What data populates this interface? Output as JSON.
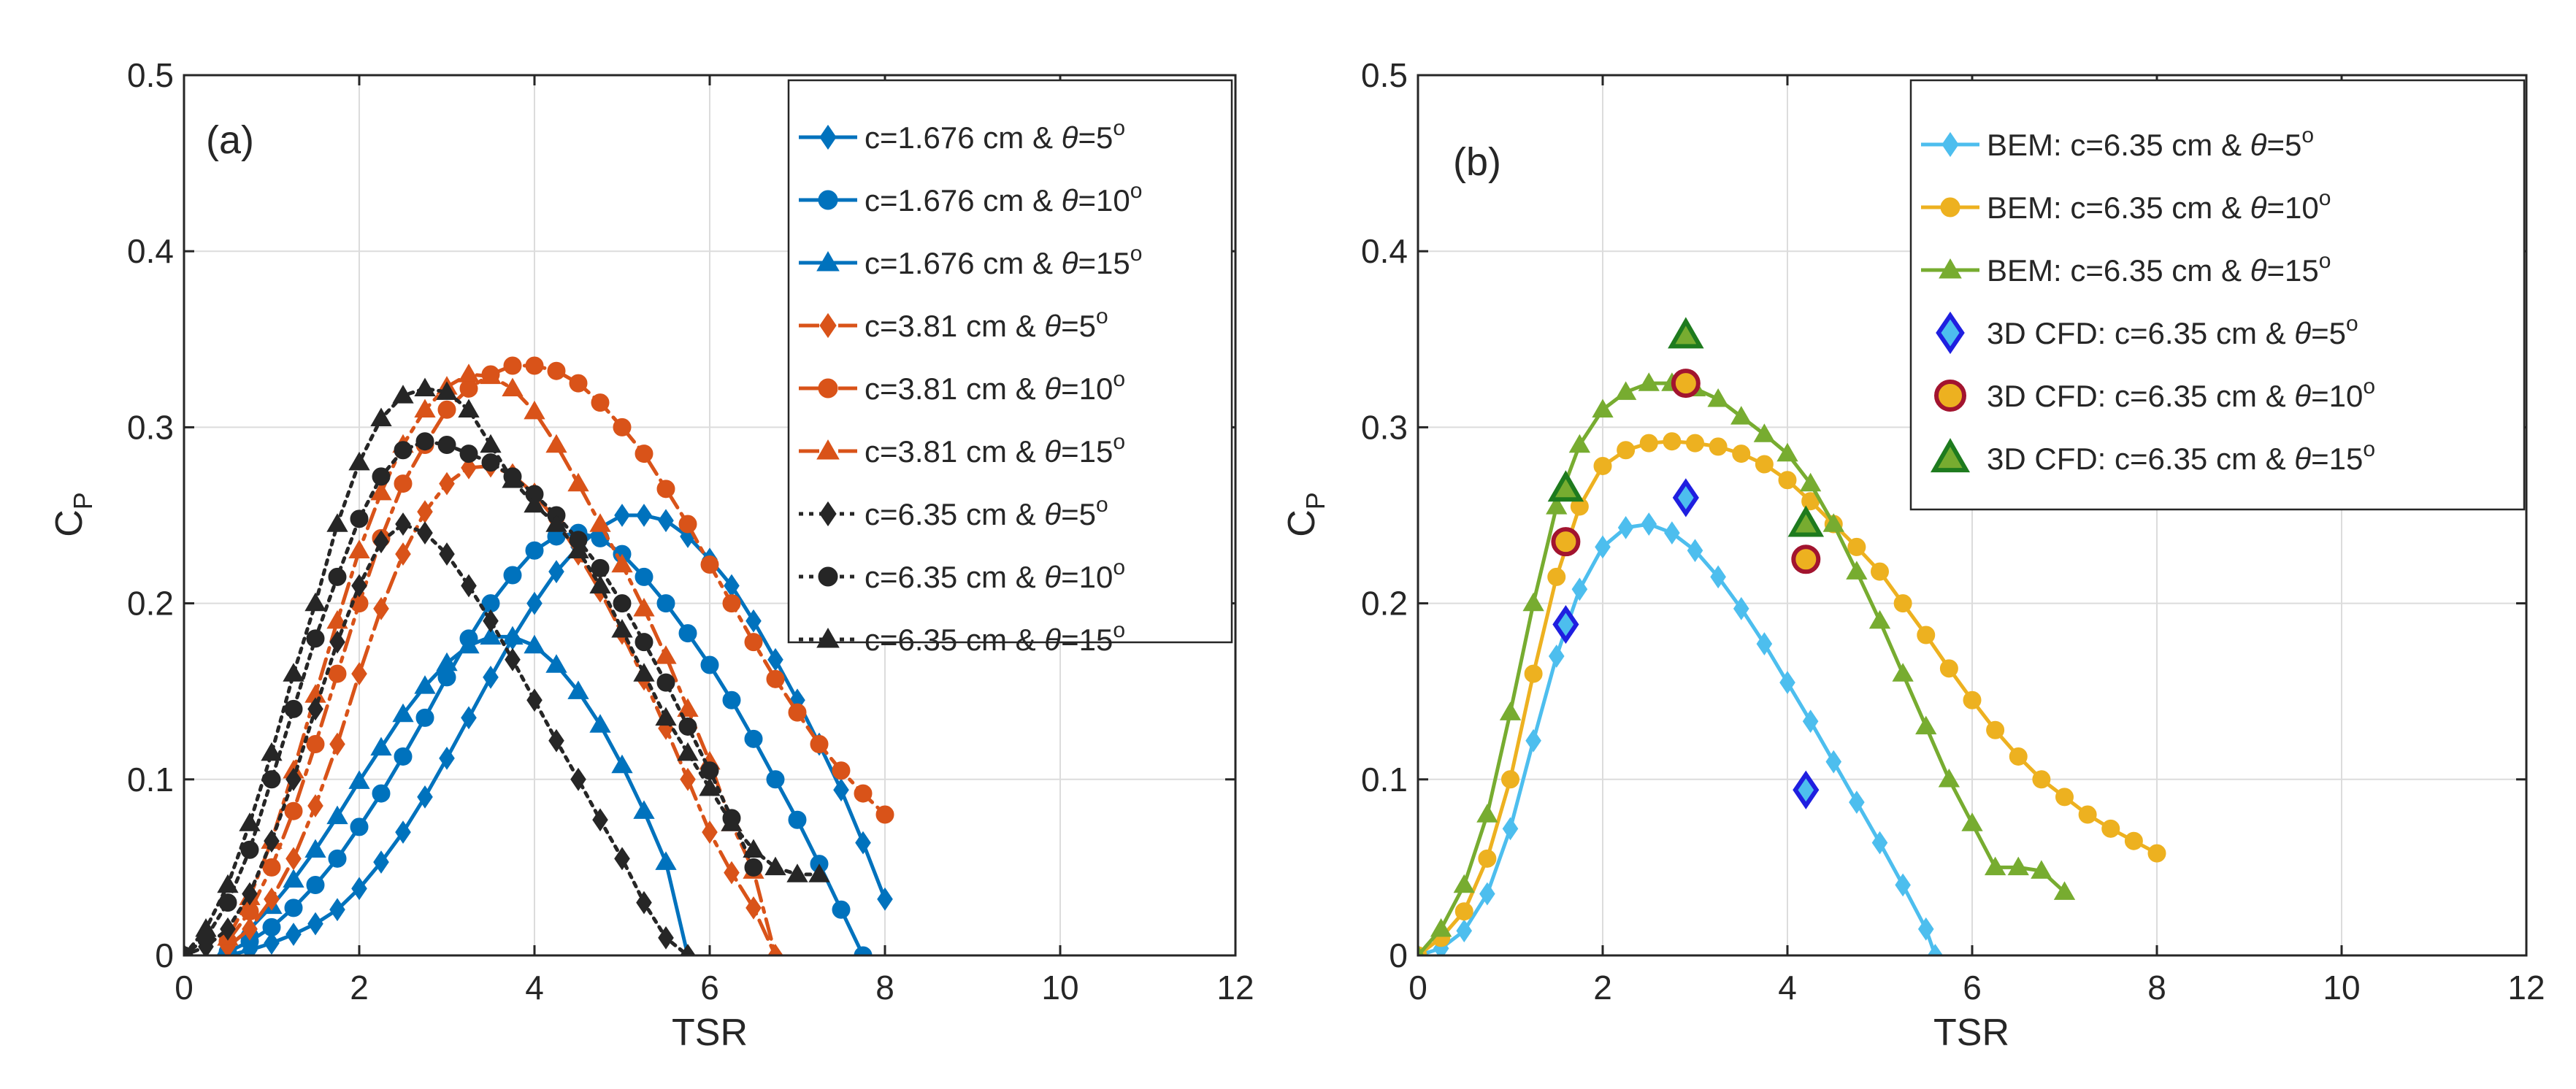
{
  "chart_data": [
    {
      "type": "line",
      "panel_label": "(a)",
      "xlabel": "TSR",
      "ylabel": "C",
      "ylabel_sub": "P",
      "xlim": [
        0,
        12
      ],
      "ylim": [
        0,
        0.5
      ],
      "xticks": [
        "0",
        "2",
        "4",
        "6",
        "8",
        "10",
        "12"
      ],
      "yticks": [
        "0",
        "0.1",
        "0.2",
        "0.3",
        "0.4",
        "0.5"
      ],
      "grid": true,
      "legend_position": "top-right",
      "series": [
        {
          "name": "c=1.676 cm & θ=5",
          "sup": "o",
          "color": "#0072BD",
          "dash": "solid",
          "marker": "diamond",
          "x": [
            0.5,
            0.75,
            1.0,
            1.25,
            1.5,
            1.75,
            2.0,
            2.25,
            2.5,
            2.75,
            3.0,
            3.25,
            3.5,
            3.75,
            4.0,
            4.25,
            4.5,
            4.75,
            5.0,
            5.25,
            5.5,
            5.75,
            6.0,
            6.25,
            6.5,
            6.75,
            7.0,
            7.25,
            7.5,
            7.75,
            8.0
          ],
          "y": [
            0.0,
            0.003,
            0.007,
            0.012,
            0.018,
            0.026,
            0.038,
            0.053,
            0.07,
            0.09,
            0.112,
            0.135,
            0.158,
            0.18,
            0.2,
            0.218,
            0.232,
            0.243,
            0.25,
            0.25,
            0.247,
            0.238,
            0.225,
            0.21,
            0.19,
            0.168,
            0.145,
            0.12,
            0.094,
            0.064,
            0.032
          ]
        },
        {
          "name": "c=1.676 cm & θ=10",
          "sup": "o",
          "color": "#0072BD",
          "dash": "solid",
          "marker": "circle",
          "x": [
            0.5,
            0.75,
            1.0,
            1.25,
            1.5,
            1.75,
            2.0,
            2.25,
            2.5,
            2.75,
            3.0,
            3.25,
            3.5,
            3.75,
            4.0,
            4.25,
            4.5,
            4.75,
            5.0,
            5.25,
            5.5,
            5.75,
            6.0,
            6.25,
            6.5,
            6.75,
            7.0,
            7.25,
            7.5,
            7.75
          ],
          "y": [
            0.002,
            0.008,
            0.016,
            0.027,
            0.04,
            0.055,
            0.073,
            0.092,
            0.113,
            0.135,
            0.158,
            0.18,
            0.2,
            0.216,
            0.23,
            0.238,
            0.24,
            0.237,
            0.228,
            0.215,
            0.2,
            0.183,
            0.165,
            0.145,
            0.123,
            0.1,
            0.077,
            0.052,
            0.026,
            0.0
          ]
        },
        {
          "name": "c=1.676 cm & θ=15",
          "sup": "o",
          "color": "#0072BD",
          "dash": "solid",
          "marker": "triangle",
          "x": [
            0.5,
            0.75,
            1.0,
            1.25,
            1.5,
            1.75,
            2.0,
            2.25,
            2.5,
            2.75,
            3.0,
            3.25,
            3.5,
            3.75,
            4.0,
            4.25,
            4.5,
            4.75,
            5.0,
            5.25,
            5.5,
            5.75
          ],
          "y": [
            0.005,
            0.015,
            0.028,
            0.043,
            0.06,
            0.079,
            0.099,
            0.118,
            0.137,
            0.153,
            0.166,
            0.176,
            0.181,
            0.181,
            0.176,
            0.165,
            0.15,
            0.131,
            0.108,
            0.082,
            0.053,
            0.0
          ]
        },
        {
          "name": "c=3.81 cm & θ=5",
          "sup": "o",
          "color": "#D95319",
          "dash": "dashdot",
          "marker": "diamond",
          "x": [
            0.5,
            0.75,
            1.0,
            1.25,
            1.5,
            1.75,
            2.0,
            2.25,
            2.5,
            2.75,
            3.0,
            3.25,
            3.5,
            3.75,
            4.0,
            4.25,
            4.5,
            4.75,
            5.0,
            5.25,
            5.5,
            5.75,
            6.0,
            6.25,
            6.5,
            6.75
          ],
          "y": [
            0.005,
            0.015,
            0.032,
            0.055,
            0.085,
            0.12,
            0.16,
            0.197,
            0.228,
            0.252,
            0.268,
            0.277,
            0.278,
            0.273,
            0.262,
            0.247,
            0.228,
            0.207,
            0.183,
            0.157,
            0.129,
            0.1,
            0.07,
            0.047,
            0.027,
            0.0
          ]
        },
        {
          "name": "c=3.81 cm & θ=10",
          "sup": "o",
          "color": "#D95319",
          "dash": "dashdot",
          "marker": "circle",
          "x": [
            0.5,
            0.75,
            1.0,
            1.25,
            1.5,
            1.75,
            2.0,
            2.25,
            2.5,
            2.75,
            3.0,
            3.25,
            3.5,
            3.75,
            4.0,
            4.25,
            4.5,
            4.75,
            5.0,
            5.25,
            5.5,
            5.75,
            6.0,
            6.25,
            6.5,
            6.75,
            7.0,
            7.25,
            7.5,
            7.75,
            8.0
          ],
          "y": [
            0.008,
            0.025,
            0.05,
            0.082,
            0.12,
            0.16,
            0.2,
            0.237,
            0.268,
            0.29,
            0.31,
            0.322,
            0.33,
            0.335,
            0.335,
            0.332,
            0.325,
            0.314,
            0.3,
            0.285,
            0.265,
            0.245,
            0.222,
            0.2,
            0.178,
            0.157,
            0.138,
            0.12,
            0.105,
            0.092,
            0.08
          ]
        },
        {
          "name": "c=3.81 cm & θ=15",
          "sup": "o",
          "color": "#D95319",
          "dash": "dashdot",
          "marker": "triangle",
          "x": [
            0.5,
            0.75,
            1.0,
            1.25,
            1.5,
            1.75,
            2.0,
            2.25,
            2.5,
            2.75,
            3.0,
            3.25,
            3.5,
            3.75,
            4.0,
            4.25,
            4.5,
            4.75,
            5.0,
            5.25,
            5.5,
            5.75,
            6.0,
            6.25,
            6.5,
            6.75
          ],
          "y": [
            0.01,
            0.033,
            0.065,
            0.105,
            0.148,
            0.19,
            0.23,
            0.263,
            0.29,
            0.31,
            0.323,
            0.33,
            0.329,
            0.322,
            0.309,
            0.29,
            0.268,
            0.245,
            0.222,
            0.197,
            0.17,
            0.14,
            0.11,
            0.075,
            0.048,
            0.0
          ]
        },
        {
          "name": "c=6.35 cm & θ=5",
          "sup": "o",
          "color": "#262626",
          "dash": "dotted",
          "marker": "diamond",
          "x": [
            0.0,
            0.25,
            0.5,
            0.75,
            1.0,
            1.25,
            1.5,
            1.75,
            2.0,
            2.25,
            2.5,
            2.75,
            3.0,
            3.25,
            3.5,
            3.75,
            4.0,
            4.25,
            4.5,
            4.75,
            5.0,
            5.25,
            5.5,
            5.75
          ],
          "y": [
            0.0,
            0.005,
            0.015,
            0.035,
            0.065,
            0.1,
            0.14,
            0.178,
            0.21,
            0.235,
            0.245,
            0.24,
            0.228,
            0.21,
            0.19,
            0.168,
            0.145,
            0.122,
            0.1,
            0.077,
            0.055,
            0.03,
            0.01,
            0.0
          ]
        },
        {
          "name": "c=6.35 cm & θ=10",
          "sup": "o",
          "color": "#262626",
          "dash": "dotted",
          "marker": "circle",
          "x": [
            0.0,
            0.25,
            0.5,
            0.75,
            1.0,
            1.25,
            1.5,
            1.75,
            2.0,
            2.25,
            2.5,
            2.75,
            3.0,
            3.25,
            3.5,
            3.75,
            4.0,
            4.25,
            4.5,
            4.75,
            5.0,
            5.25,
            5.5,
            5.75,
            6.0,
            6.25,
            6.5
          ],
          "y": [
            0.0,
            0.01,
            0.03,
            0.06,
            0.1,
            0.14,
            0.18,
            0.215,
            0.248,
            0.272,
            0.287,
            0.292,
            0.29,
            0.285,
            0.28,
            0.272,
            0.262,
            0.25,
            0.236,
            0.22,
            0.2,
            0.178,
            0.155,
            0.13,
            0.105,
            0.078,
            0.05
          ]
        },
        {
          "name": "c=6.35 cm & θ=15",
          "sup": "o",
          "color": "#262626",
          "dash": "dotted",
          "marker": "triangle",
          "x": [
            0.0,
            0.25,
            0.5,
            0.75,
            1.0,
            1.25,
            1.5,
            1.75,
            2.0,
            2.25,
            2.5,
            2.75,
            3.0,
            3.25,
            3.5,
            3.75,
            4.0,
            4.25,
            4.5,
            4.75,
            5.0,
            5.25,
            5.5,
            5.75,
            6.0,
            6.25,
            6.5,
            6.75,
            7.0,
            7.25
          ],
          "y": [
            0.0,
            0.015,
            0.04,
            0.075,
            0.115,
            0.16,
            0.2,
            0.245,
            0.28,
            0.305,
            0.318,
            0.322,
            0.32,
            0.31,
            0.29,
            0.27,
            0.256,
            0.245,
            0.23,
            0.21,
            0.185,
            0.16,
            0.135,
            0.115,
            0.095,
            0.075,
            0.06,
            0.05,
            0.046,
            0.046
          ]
        }
      ]
    },
    {
      "type": "line",
      "panel_label": "(b)",
      "xlabel": "TSR",
      "ylabel": "C",
      "ylabel_sub": "P",
      "xlim": [
        0,
        12
      ],
      "ylim": [
        0,
        0.5
      ],
      "xticks": [
        "0",
        "2",
        "4",
        "6",
        "8",
        "10",
        "12"
      ],
      "yticks": [
        "0",
        "0.1",
        "0.2",
        "0.3",
        "0.4",
        "0.5"
      ],
      "grid": true,
      "legend_position": "top-right",
      "series": [
        {
          "name": "BEM: c=6.35 cm & θ=5",
          "sup": "o",
          "color": "#4DBEEE",
          "dash": "solid",
          "marker": "diamond",
          "x": [
            0.0,
            0.25,
            0.5,
            0.75,
            1.0,
            1.25,
            1.5,
            1.75,
            2.0,
            2.25,
            2.5,
            2.75,
            3.0,
            3.25,
            3.5,
            3.75,
            4.0,
            4.25,
            4.5,
            4.75,
            5.0,
            5.25,
            5.5,
            5.6
          ],
          "y": [
            0.0,
            0.004,
            0.014,
            0.035,
            0.072,
            0.122,
            0.17,
            0.208,
            0.232,
            0.243,
            0.245,
            0.24,
            0.23,
            0.215,
            0.197,
            0.177,
            0.155,
            0.133,
            0.11,
            0.087,
            0.064,
            0.04,
            0.015,
            0.0
          ]
        },
        {
          "name": "BEM: c=6.35 cm & θ=10",
          "sup": "o",
          "color": "#EDB120",
          "dash": "solid",
          "marker": "circle",
          "x": [
            0.0,
            0.25,
            0.5,
            0.75,
            1.0,
            1.25,
            1.5,
            1.75,
            2.0,
            2.25,
            2.5,
            2.75,
            3.0,
            3.25,
            3.5,
            3.75,
            4.0,
            4.25,
            4.5,
            4.75,
            5.0,
            5.25,
            5.5,
            5.75,
            6.0,
            6.25,
            6.5,
            6.75,
            7.0,
            7.25,
            7.5,
            7.75,
            8.0
          ],
          "y": [
            0.0,
            0.01,
            0.025,
            0.055,
            0.1,
            0.16,
            0.215,
            0.255,
            0.278,
            0.287,
            0.291,
            0.292,
            0.291,
            0.289,
            0.285,
            0.279,
            0.27,
            0.258,
            0.245,
            0.232,
            0.218,
            0.2,
            0.182,
            0.163,
            0.145,
            0.128,
            0.113,
            0.1,
            0.09,
            0.08,
            0.072,
            0.065,
            0.058
          ]
        },
        {
          "name": "BEM: c=6.35 cm & θ=15",
          "sup": "o",
          "color": "#77AC30",
          "dash": "solid",
          "marker": "triangle",
          "x": [
            0.0,
            0.25,
            0.5,
            0.75,
            1.0,
            1.25,
            1.5,
            1.75,
            2.0,
            2.25,
            2.5,
            2.75,
            3.0,
            3.25,
            3.5,
            3.75,
            4.0,
            4.25,
            4.5,
            4.75,
            5.0,
            5.25,
            5.5,
            5.75,
            6.0,
            6.25,
            6.5,
            6.75,
            7.0
          ],
          "y": [
            0.0,
            0.015,
            0.04,
            0.08,
            0.138,
            0.2,
            0.255,
            0.29,
            0.31,
            0.32,
            0.325,
            0.325,
            0.322,
            0.316,
            0.306,
            0.296,
            0.285,
            0.268,
            0.245,
            0.218,
            0.19,
            0.16,
            0.13,
            0.1,
            0.075,
            0.05,
            0.05,
            0.048,
            0.036
          ]
        },
        {
          "name": "3D CFD: c=6.35 cm & θ=5",
          "sup": "o",
          "color": "#4DBEEE",
          "edge": "#1F1FE0",
          "marker": "diamond",
          "markers_only": true,
          "x": [
            1.6,
            2.9,
            4.2
          ],
          "y": [
            0.188,
            0.26,
            0.094
          ]
        },
        {
          "name": "3D CFD: c=6.35 cm & θ=10",
          "sup": "o",
          "color": "#EDB120",
          "edge": "#A2142F",
          "marker": "circle",
          "markers_only": true,
          "x": [
            1.6,
            2.9,
            4.2
          ],
          "y": [
            0.235,
            0.325,
            0.225
          ]
        },
        {
          "name": "3D CFD: c=6.35 cm & θ=15",
          "sup": "o",
          "color": "#77AC30",
          "edge": "#1E7B1E",
          "marker": "triangle",
          "markers_only": true,
          "x": [
            1.6,
            2.9,
            4.2
          ],
          "y": [
            0.265,
            0.352,
            0.245
          ]
        }
      ]
    }
  ]
}
